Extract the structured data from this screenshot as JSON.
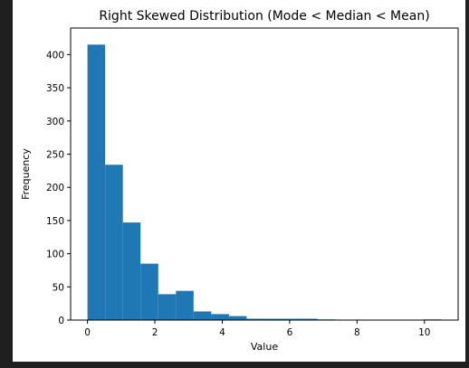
{
  "chart_data": {
    "type": "bar",
    "subtype": "histogram",
    "title": "Right Skewed Distribution (Mode < Median < Mean)",
    "xlabel": "Value",
    "ylabel": "Frequency",
    "xlim": [
      -0.5,
      11.0
    ],
    "ylim": [
      0,
      440
    ],
    "x_ticks": [
      0,
      2,
      4,
      6,
      8,
      10
    ],
    "y_ticks": [
      0,
      50,
      100,
      150,
      200,
      250,
      300,
      350,
      400
    ],
    "bin_width": 0.525,
    "bin_start": 0.0,
    "values": [
      415,
      234,
      147,
      85,
      39,
      44,
      13,
      9,
      6,
      2,
      2,
      2,
      2,
      1,
      0,
      0,
      0,
      0,
      0,
      1
    ],
    "bar_color": "#1f77b4",
    "grid": false,
    "legend": "none"
  }
}
